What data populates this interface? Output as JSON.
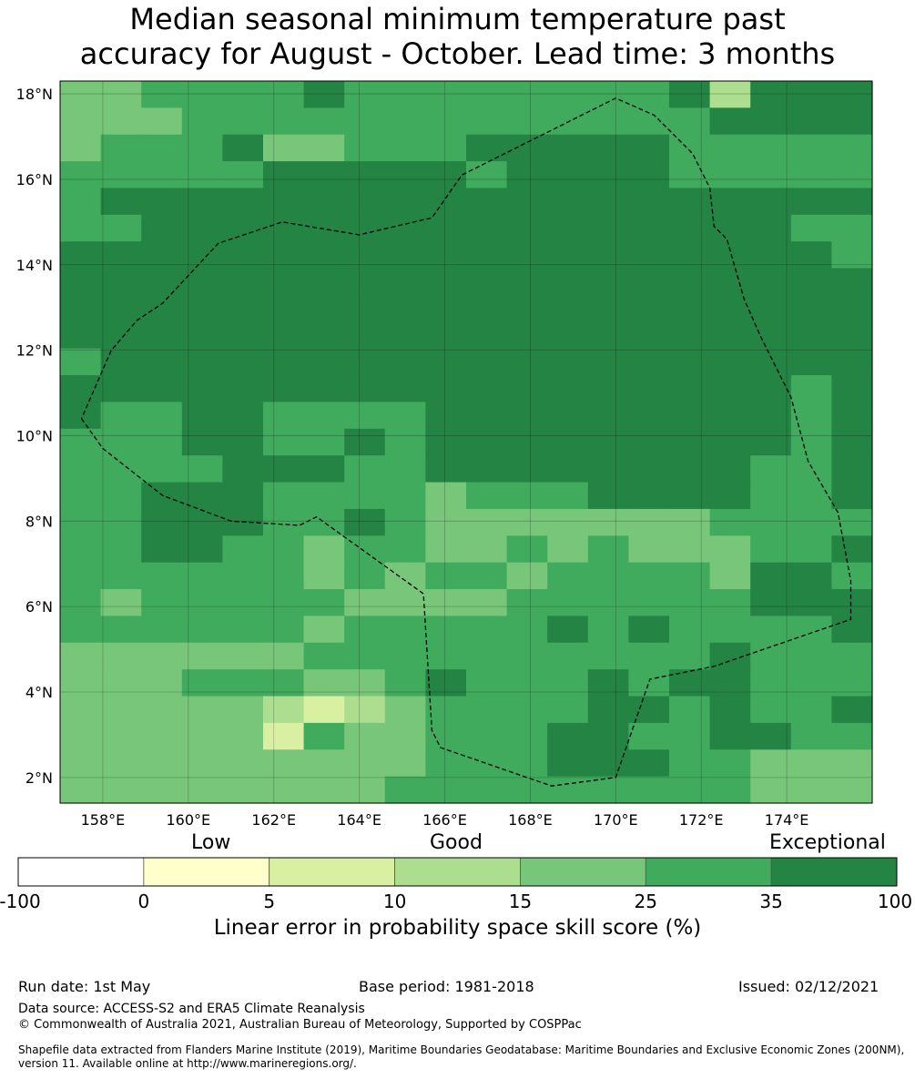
{
  "title": {
    "line1": "Median seasonal minimum temperature past",
    "line2": "accuracy for August - October. Lead time: 3 months"
  },
  "map": {
    "lon_range": [
      157.0,
      176.0
    ],
    "lat_range": [
      1.4,
      18.3
    ],
    "lon_ticks": [
      "158°E",
      "160°E",
      "162°E",
      "164°E",
      "166°E",
      "168°E",
      "170°E",
      "172°E",
      "174°E"
    ],
    "lon_tick_values": [
      158,
      160,
      162,
      164,
      166,
      168,
      170,
      172,
      174
    ],
    "lat_ticks": [
      "18°N",
      "16°N",
      "14°N",
      "12°N",
      "10°N",
      "8°N",
      "6°N",
      "4°N",
      "2°N"
    ],
    "lat_tick_values": [
      18,
      16,
      14,
      12,
      10,
      8,
      6,
      4,
      2
    ],
    "cell_size_deg": 0.83,
    "grid_lines": true,
    "boundary_style": "dashed",
    "eez_boundary_lonlat": [
      [
        157.5,
        10.4
      ],
      [
        158.0,
        9.7
      ],
      [
        159.4,
        8.6
      ],
      [
        161.0,
        8.0
      ],
      [
        162.6,
        7.9
      ],
      [
        163.0,
        8.1
      ],
      [
        165.5,
        6.3
      ],
      [
        165.7,
        3.1
      ],
      [
        165.9,
        2.7
      ],
      [
        168.5,
        1.8
      ],
      [
        170.0,
        2.0
      ],
      [
        170.8,
        4.3
      ],
      [
        172.3,
        4.6
      ],
      [
        175.5,
        5.7
      ],
      [
        175.5,
        6.6
      ],
      [
        175.2,
        8.2
      ],
      [
        174.5,
        9.4
      ],
      [
        174.1,
        10.9
      ],
      [
        173.4,
        12.3
      ],
      [
        173.0,
        13.2
      ],
      [
        172.6,
        14.6
      ],
      [
        172.3,
        14.9
      ],
      [
        172.2,
        15.8
      ],
      [
        171.8,
        16.6
      ],
      [
        170.9,
        17.5
      ],
      [
        170.0,
        17.9
      ],
      [
        166.4,
        16.1
      ],
      [
        165.7,
        15.1
      ],
      [
        164.0,
        14.7
      ],
      [
        162.2,
        15.0
      ],
      [
        160.7,
        14.5
      ],
      [
        159.4,
        13.1
      ],
      [
        158.8,
        12.7
      ],
      [
        158.2,
        12.0
      ],
      [
        157.5,
        10.4
      ]
    ],
    "category_colors": [
      "#78c679",
      "#41ab5d",
      "#238443",
      "#addd8e",
      "#d9f0a3"
    ],
    "cells_comment_free": true,
    "cells": [
      "00111121111111123222",
      "00011111111111112222",
      "01112001112222211111",
      "11111222221222211111",
      "12222222222222222222",
      "11222222222222222211",
      "22222222222222222221",
      "22222222222222222222",
      "22222222222222222222",
      "22222222222222222222",
      "12222222222222222222",
      "22222222222222222212",
      "21122111122222222212",
      "11122112122222222212",
      "11112221122222222112",
      "11222111101112222112",
      "11222112100000001111",
      "11221101100101000112",
      "11111101011011110221",
      "10111110000111111222",
      "11111101111121211112",
      "00000011111111112111",
      "00011100121112122111",
      "00000343011112212112",
      "00000410011122112211",
      "00000000011122211000",
      "00000000111111111000"
    ]
  },
  "legend": {
    "words": [
      "Low",
      "Good",
      "Exceptional"
    ],
    "ticks": [
      "-100",
      "0",
      "5",
      "10",
      "15",
      "25",
      "35",
      "100"
    ],
    "colors": [
      "#ffffff",
      "#ffffcc",
      "#d9f0a3",
      "#addd8e",
      "#78c679",
      "#41ab5d",
      "#238443"
    ],
    "title": "Linear error in probability space skill score (%)"
  },
  "footer": {
    "run_date": "Run date: 1st May",
    "base_period": "Base period: 1981-2018",
    "issued": "Issued: 02/12/2021",
    "data_source": "Data source: ACCESS-S2 and ERA5 Climate Reanalysis",
    "copyright": "© Commonwealth of Australia 2021, Australian Bureau of Meteorology, Supported by COSPPac",
    "shapefile": "Shapefile data extracted from Flanders Marine Institute (2019), Maritime Boundaries Geodatabase: Maritime Boundaries and Exclusive Economic Zones (200NM), version 11. Available online at http://www.marineregions.org/."
  }
}
